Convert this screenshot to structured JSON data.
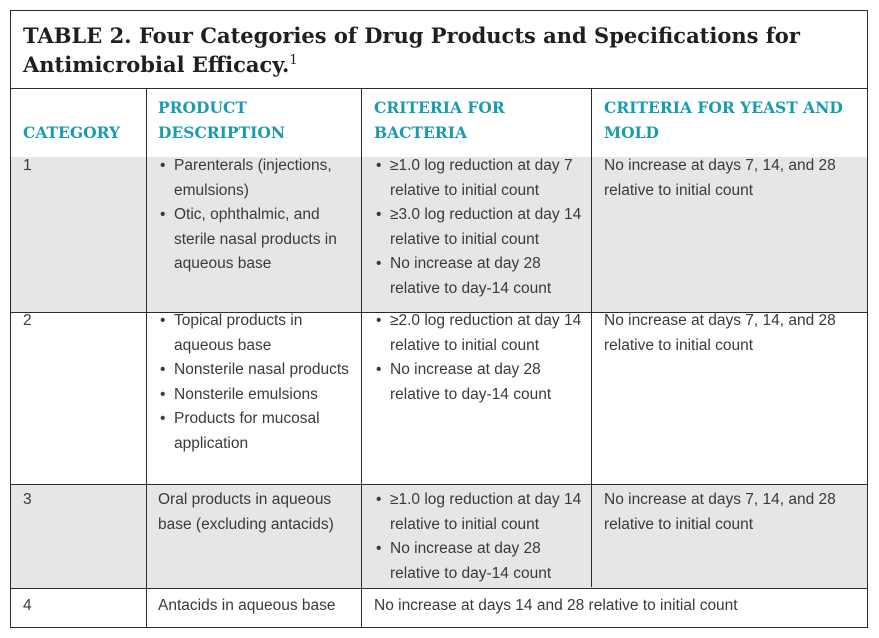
{
  "table": {
    "title": "TABLE 2. Four Categories of Drug Products and Specifications for Antimicrobial Efficacy.",
    "title_superscript": "1",
    "accent_color": "#1a9bb1",
    "shade_color": "#e6e6e6",
    "headers": {
      "category": "CATEGORY",
      "product": "PRODUCT DESCRIPTION",
      "bacteria": "CRITERIA FOR BACTERIA",
      "yeast": "CRITERIA FOR YEAST AND MOLD"
    },
    "rows": [
      {
        "category": "1",
        "product": [
          "Parenterals (injections, emulsions)",
          "Otic, ophthalmic, and sterile nasal products in aqueous base"
        ],
        "bacteria": [
          "≥1.0 log reduction at day 7 relative to initial count",
          "≥3.0 log reduction at day 14 relative to initial count",
          "No increase at day 28 relative to day-14 count"
        ],
        "yeast": "No increase at days 7, 14, and 28 relative to initial count"
      },
      {
        "category": "2",
        "product": [
          "Topical products in aqueous base",
          "Nonsterile nasal products",
          "Nonsterile emulsions",
          "Products for mucosal application"
        ],
        "bacteria": [
          "≥2.0 log reduction at day 14 relative to initial count",
          "No increase at day 28 relative to day-14 count"
        ],
        "yeast": "No increase at days 7, 14, and 28 relative to initial count"
      },
      {
        "category": "3",
        "product_text": "Oral products in aqueous base (excluding antacids)",
        "bacteria": [
          "≥1.0 log reduction at day 14 relative to initial count",
          "No increase at day 28 relative to day-14 count"
        ],
        "yeast": "No increase at days 7, 14, and 28 relative to initial count"
      },
      {
        "category": "4",
        "product_text": "Antacids in aqueous base",
        "combined_criteria": "No increase at days 14 and 28 relative to initial count"
      }
    ]
  }
}
